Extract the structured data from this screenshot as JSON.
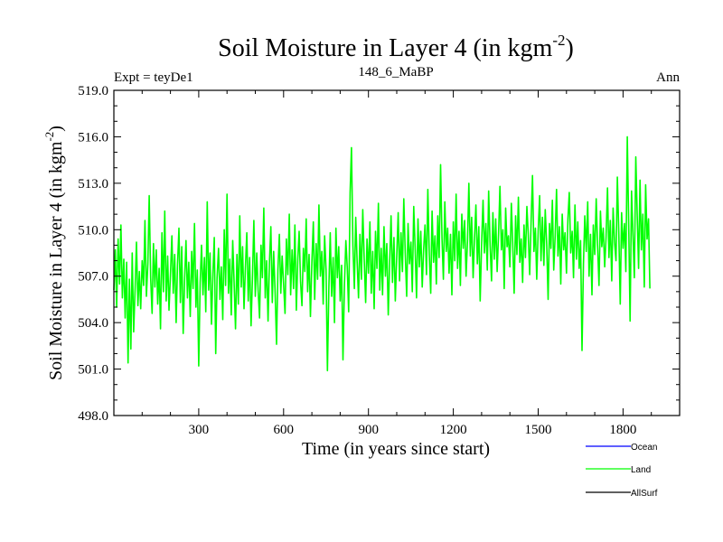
{
  "chart_data": {
    "type": "line",
    "title": "Soil Moisture in Layer 4 (in kgm",
    "title_exponent": "-2",
    "title_close": ")",
    "subtitle_left": "Expt = teyDe1",
    "subtitle_center": "148_6_MaBP",
    "subtitle_right": "Ann",
    "xlabel": "Time (in years since start)",
    "ylabel": "Soil Moisture in Layer 4 (in kgm",
    "ylabel_exponent": "-2",
    "ylabel_close": ")",
    "xlim": [
      0,
      2000
    ],
    "ylim": [
      498,
      519
    ],
    "x_ticks": [
      300,
      600,
      900,
      1200,
      1500,
      1800
    ],
    "x_tick_labels": [
      "300",
      "600",
      "900",
      "1200",
      "1500",
      "1800"
    ],
    "y_ticks": [
      498,
      501,
      504,
      507,
      510,
      513,
      516,
      519
    ],
    "y_tick_labels": [
      "498.0",
      "501.0",
      "504.0",
      "507.0",
      "510.0",
      "513.0",
      "516.0",
      "519.0"
    ],
    "series": [
      {
        "name": "Land",
        "color": "#00ff00",
        "x_start": 0,
        "x_step": 5,
        "values": [
          506.1,
          508.7,
          505.0,
          509.4,
          506.5,
          510.3,
          505.6,
          508.1,
          504.3,
          507.9,
          501.4,
          506.8,
          502.3,
          508.5,
          503.4,
          506.2,
          509.2,
          505.1,
          507.3,
          504.9,
          508.0,
          506.4,
          510.6,
          505.7,
          507.8,
          512.2,
          506.9,
          504.6,
          509.1,
          506.3,
          508.7,
          505.2,
          507.5,
          503.6,
          509.8,
          506.0,
          511.2,
          505.4,
          508.3,
          504.8,
          507.1,
          509.6,
          505.9,
          508.4,
          504.0,
          507.7,
          510.1,
          505.3,
          508.9,
          503.3,
          506.8,
          509.3,
          505.6,
          507.9,
          504.4,
          508.6,
          506.2,
          510.4,
          505.0,
          507.4,
          501.2,
          506.6,
          509.0,
          505.8,
          508.2,
          504.7,
          511.8,
          506.1,
          508.5,
          503.9,
          507.2,
          509.5,
          502.0,
          506.9,
          508.8,
          505.5,
          507.6,
          504.2,
          510.0,
          506.4,
          512.3,
          505.9,
          508.1,
          504.5,
          509.3,
          506.7,
          503.6,
          508.4,
          505.2,
          510.9,
          506.3,
          508.9,
          504.9,
          507.5,
          509.8,
          505.4,
          508.2,
          503.8,
          507.0,
          510.6,
          505.7,
          508.5,
          506.1,
          504.3,
          509.0,
          506.9,
          511.4,
          505.6,
          508.0,
          504.1,
          507.8,
          510.2,
          505.3,
          508.6,
          506.0,
          502.6,
          507.4,
          509.7,
          505.9,
          508.3,
          506.5,
          504.6,
          509.4,
          507.1,
          511.0,
          505.8,
          508.7,
          506.2,
          510.3,
          504.8,
          508.1,
          509.9,
          506.6,
          505.1,
          508.8,
          507.3,
          510.7,
          506.0,
          508.4,
          504.4,
          507.9,
          510.5,
          505.5,
          509.1,
          506.8,
          511.6,
          507.0,
          508.6,
          505.2,
          509.6,
          507.4,
          500.9,
          506.3,
          509.8,
          505.7,
          508.2,
          504.0,
          510.1,
          506.9,
          508.9,
          505.4,
          507.7,
          501.6,
          506.4,
          509.3,
          507.6,
          504.7,
          512.4,
          515.3,
          509.0,
          506.2,
          510.8,
          507.9,
          505.6,
          509.7,
          506.8,
          511.3,
          508.1,
          505.3,
          509.4,
          507.2,
          510.5,
          505.9,
          508.6,
          504.9,
          509.9,
          507.5,
          511.7,
          506.1,
          508.8,
          505.8,
          510.2,
          507.0,
          509.1,
          504.5,
          508.0,
          510.9,
          506.6,
          509.5,
          505.4,
          508.3,
          511.1,
          506.7,
          509.8,
          507.3,
          512.0,
          508.5,
          505.7,
          510.4,
          507.8,
          509.2,
          506.0,
          511.5,
          508.9,
          505.6,
          510.7,
          507.6,
          509.9,
          506.3,
          508.7,
          510.3,
          507.1,
          512.6,
          508.4,
          505.9,
          511.2,
          507.9,
          509.6,
          506.5,
          510.9,
          508.2,
          514.2,
          509.4,
          506.8,
          511.8,
          508.6,
          510.1,
          507.2,
          509.7,
          505.8,
          510.5,
          508.0,
          512.3,
          507.5,
          509.9,
          506.4,
          511.0,
          508.8,
          510.6,
          507.0,
          509.3,
          513.0,
          508.3,
          510.8,
          506.9,
          509.5,
          511.6,
          507.8,
          510.2,
          505.4,
          509.1,
          511.9,
          508.5,
          510.4,
          507.4,
          512.5,
          509.0,
          506.7,
          511.1,
          508.1,
          510.7,
          507.3,
          509.8,
          512.8,
          508.7,
          510.0,
          506.2,
          511.4,
          508.9,
          509.6,
          507.6,
          511.7,
          509.2,
          505.9,
          510.9,
          508.4,
          512.1,
          507.9,
          509.4,
          506.6,
          510.3,
          508.2,
          511.5,
          509.7,
          507.1,
          510.6,
          513.5,
          508.6,
          510.1,
          506.8,
          509.9,
          512.2,
          508.0,
          510.8,
          507.7,
          511.3,
          509.1,
          505.5,
          510.4,
          508.8,
          511.9,
          507.4,
          509.6,
          512.6,
          508.3,
          510.2,
          506.5,
          511.0,
          508.7,
          509.8,
          507.2,
          510.7,
          512.4,
          508.5,
          509.9,
          506.9,
          511.6,
          508.1,
          510.5,
          507.5,
          509.3,
          502.2,
          507.8,
          510.9,
          508.6,
          511.8,
          507.0,
          509.7,
          505.8,
          510.3,
          508.4,
          512.0,
          509.0,
          506.4,
          511.2,
          508.9,
          510.1,
          507.6,
          509.5,
          512.7,
          508.2,
          510.6,
          506.7,
          511.4,
          509.2,
          508.0,
          513.4,
          509.8,
          505.2,
          511.1,
          508.8,
          510.4,
          507.3,
          516.0,
          510.2,
          504.1,
          512.5,
          509.6,
          506.9,
          514.7,
          510.9,
          507.5,
          513.2,
          508.7,
          511.0,
          506.3,
          512.9,
          509.4,
          510.7,
          506.2
        ]
      }
    ],
    "legend": [
      {
        "name": "Ocean",
        "color": "#0000ff"
      },
      {
        "name": "Land",
        "color": "#00ff00"
      },
      {
        "name": "AllSurf",
        "color": "#000000"
      }
    ]
  }
}
